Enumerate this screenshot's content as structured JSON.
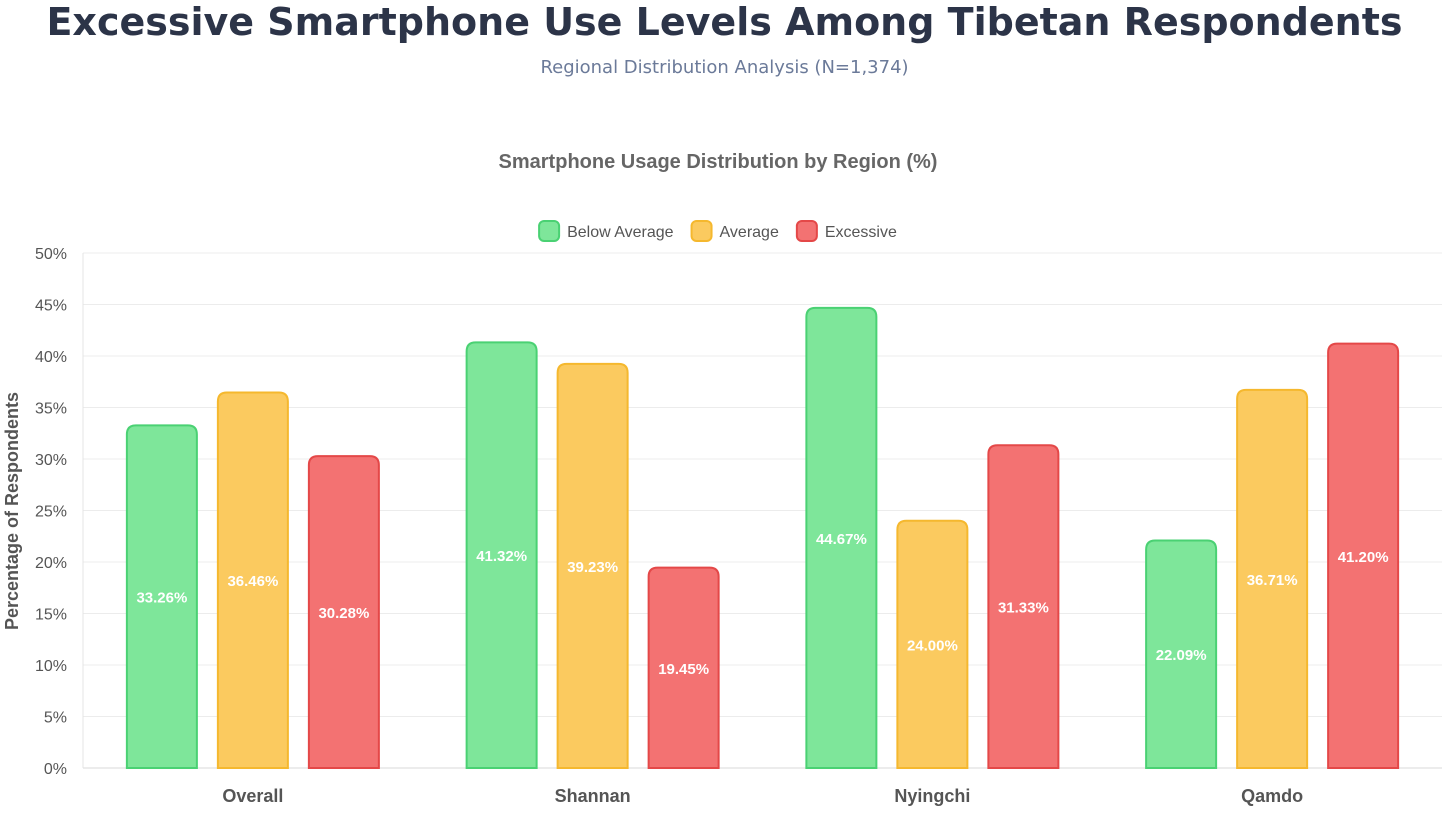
{
  "page": {
    "title": "Excessive Smartphone Use Levels Among Tibetan Respondents",
    "subtitle": "Regional Distribution Analysis (N=1,374)"
  },
  "colors": {
    "below_average_fill": "#7ee69a",
    "below_average_stroke": "#4ad173",
    "average_fill": "#fbca5f",
    "average_stroke": "#f5b82e",
    "excessive_fill": "#f37272",
    "excessive_stroke": "#e44848",
    "grid": "#ececec",
    "axis_text": "#555555",
    "title_text": "#666666"
  },
  "chart_data": {
    "type": "bar",
    "title": "Smartphone Usage Distribution by Region (%)",
    "ylabel": "Percentage of Respondents",
    "xlabel": "",
    "categories": [
      "Overall",
      "Shannan",
      "Nyingchi",
      "Qamdo"
    ],
    "ylim": [
      0,
      50
    ],
    "y_tick_step": 5,
    "y_tick_suffix": "%",
    "grid": true,
    "legend_position": "top-center",
    "series": [
      {
        "name": "Below Average",
        "values": [
          33.26,
          41.32,
          44.67,
          22.09
        ],
        "labels": [
          "33.26%",
          "41.32%",
          "44.67%",
          "22.09%"
        ]
      },
      {
        "name": "Average",
        "values": [
          36.46,
          39.23,
          24.0,
          36.71
        ],
        "labels": [
          "36.46%",
          "39.23%",
          "24.00%",
          "36.71%"
        ]
      },
      {
        "name": "Excessive",
        "values": [
          30.28,
          19.45,
          31.33,
          41.2
        ],
        "labels": [
          "30.28%",
          "19.45%",
          "31.33%",
          "41.20%"
        ]
      }
    ]
  }
}
